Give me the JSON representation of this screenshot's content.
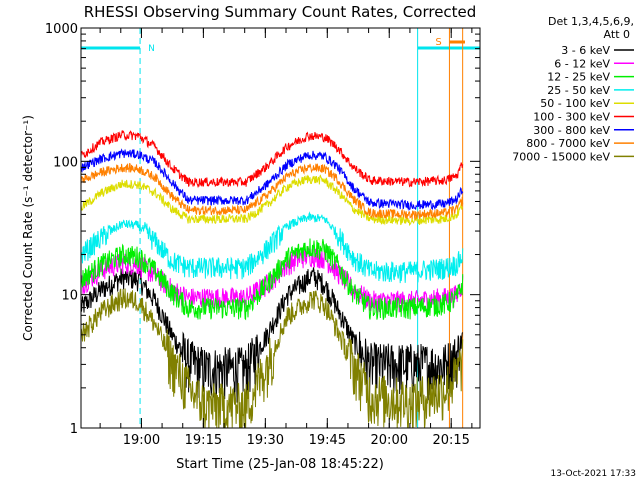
{
  "title": "RHESSI Observing Summary Count Rates, Corrected",
  "xlabel": "Start Time (25-Jan-08 18:45:22)",
  "ylabel": "Corrected Count Rate (s⁻¹ detector⁻¹)",
  "timestamp": "13-Oct-2021 17:33",
  "detector_line1": "Det 1,3,4,5,6,9,",
  "detector_line2": "Att 0",
  "flags": {
    "night_label": "N",
    "saa_label": "S"
  },
  "colors": {
    "night": "#00e5ee",
    "saa": "#ff8000"
  },
  "chart_data": {
    "type": "line",
    "x_axis": {
      "start": "18:45:22",
      "end": "20:22:00",
      "range_minutes": [
        0,
        96.6
      ],
      "ticks": [
        "19:00",
        "19:15",
        "19:30",
        "19:45",
        "20:00",
        "20:15"
      ],
      "tick_minutes": [
        14.63,
        29.63,
        44.63,
        59.63,
        74.63,
        89.63
      ]
    },
    "y_axis": {
      "scale": "log",
      "ylim": [
        1,
        1000
      ],
      "ticks": [
        "1",
        "10",
        "100",
        "1000"
      ],
      "tick_values": [
        1,
        10,
        100,
        1000
      ]
    },
    "night_intervals": [
      {
        "start_min": 0.0,
        "end_min": 14.3,
        "label": "N"
      },
      {
        "start_min": 81.5,
        "end_min": 96.6,
        "label": ""
      }
    ],
    "saa_intervals": [
      {
        "start_min": 89.2,
        "end_min": 92.4,
        "label": "S"
      }
    ],
    "series": [
      {
        "name": "3 - 6 keV",
        "color": "#000000",
        "points": [
          [
            0,
            8
          ],
          [
            5,
            11
          ],
          [
            10,
            13.5
          ],
          [
            14,
            13
          ],
          [
            18,
            9
          ],
          [
            22,
            5
          ],
          [
            26,
            3.2
          ],
          [
            30,
            2.8
          ],
          [
            40,
            2.8
          ],
          [
            45,
            5
          ],
          [
            50,
            10
          ],
          [
            56,
            14
          ],
          [
            59,
            12
          ],
          [
            62,
            8
          ],
          [
            66,
            4.5
          ],
          [
            70,
            3
          ],
          [
            81,
            3
          ],
          [
            88,
            3
          ],
          [
            91,
            3.5
          ],
          [
            92.5,
            5
          ]
        ]
      },
      {
        "name": "6 - 12 keV",
        "color": "#ff00ff",
        "points": [
          [
            0,
            12
          ],
          [
            5,
            15.5
          ],
          [
            10,
            17.5
          ],
          [
            14,
            17
          ],
          [
            18,
            14
          ],
          [
            22,
            11
          ],
          [
            26,
            9.5
          ],
          [
            40,
            9.5
          ],
          [
            45,
            12
          ],
          [
            50,
            17
          ],
          [
            55,
            20
          ],
          [
            59,
            19
          ],
          [
            62,
            15
          ],
          [
            66,
            11
          ],
          [
            70,
            9
          ],
          [
            80,
            9
          ],
          [
            88,
            9.5
          ],
          [
            91,
            10
          ],
          [
            92.5,
            12.5
          ]
        ]
      },
      {
        "name": "12 - 25 keV",
        "color": "#00ee00",
        "points": [
          [
            0,
            13
          ],
          [
            5,
            17
          ],
          [
            10,
            20
          ],
          [
            14,
            19.5
          ],
          [
            18,
            15
          ],
          [
            22,
            10.5
          ],
          [
            26,
            8
          ],
          [
            40,
            8
          ],
          [
            45,
            12
          ],
          [
            50,
            19
          ],
          [
            55,
            23
          ],
          [
            59,
            22
          ],
          [
            62,
            17
          ],
          [
            66,
            10.5
          ],
          [
            70,
            8
          ],
          [
            80,
            8
          ],
          [
            88,
            8.5
          ],
          [
            91,
            9.5
          ],
          [
            92.5,
            12.5
          ]
        ]
      },
      {
        "name": "25 - 50 keV",
        "color": "#00eeee",
        "points": [
          [
            0,
            20
          ],
          [
            5,
            27
          ],
          [
            10,
            34
          ],
          [
            14,
            33
          ],
          [
            18,
            25
          ],
          [
            22,
            18
          ],
          [
            26,
            16
          ],
          [
            40,
            16
          ],
          [
            45,
            22
          ],
          [
            50,
            33
          ],
          [
            55,
            38
          ],
          [
            59,
            37
          ],
          [
            62,
            29
          ],
          [
            66,
            19
          ],
          [
            70,
            15
          ],
          [
            80,
            15
          ],
          [
            88,
            16
          ],
          [
            91,
            17
          ],
          [
            92.5,
            20
          ]
        ]
      },
      {
        "name": "50 - 100 keV",
        "color": "#dddd00",
        "points": [
          [
            0,
            45
          ],
          [
            5,
            58
          ],
          [
            10,
            68
          ],
          [
            14,
            67
          ],
          [
            18,
            58
          ],
          [
            22,
            44
          ],
          [
            26,
            37
          ],
          [
            40,
            37
          ],
          [
            45,
            47
          ],
          [
            50,
            65
          ],
          [
            55,
            74
          ],
          [
            59,
            72
          ],
          [
            62,
            60
          ],
          [
            66,
            44
          ],
          [
            70,
            37
          ],
          [
            80,
            36
          ],
          [
            88,
            37
          ],
          [
            91,
            40
          ],
          [
            92.5,
            48
          ]
        ]
      },
      {
        "name": "100 - 300 keV",
        "color": "#ff0000",
        "points": [
          [
            0,
            110
          ],
          [
            5,
            140
          ],
          [
            10,
            158
          ],
          [
            14,
            155
          ],
          [
            18,
            128
          ],
          [
            22,
            90
          ],
          [
            26,
            70
          ],
          [
            40,
            70
          ],
          [
            45,
            92
          ],
          [
            50,
            130
          ],
          [
            55,
            156
          ],
          [
            59,
            152
          ],
          [
            62,
            128
          ],
          [
            66,
            90
          ],
          [
            70,
            72
          ],
          [
            80,
            70
          ],
          [
            88,
            72
          ],
          [
            91,
            78
          ],
          [
            92.5,
            100
          ]
        ]
      },
      {
        "name": "300 - 800 keV",
        "color": "#0000ff",
        "points": [
          [
            0,
            90
          ],
          [
            5,
            105
          ],
          [
            10,
            115
          ],
          [
            14,
            113
          ],
          [
            18,
            98
          ],
          [
            22,
            70
          ],
          [
            26,
            51
          ],
          [
            40,
            51
          ],
          [
            45,
            67
          ],
          [
            50,
            95
          ],
          [
            55,
            112
          ],
          [
            59,
            109
          ],
          [
            62,
            92
          ],
          [
            66,
            63
          ],
          [
            70,
            49
          ],
          [
            80,
            47
          ],
          [
            88,
            48
          ],
          [
            91,
            52
          ],
          [
            92.5,
            63
          ]
        ]
      },
      {
        "name": "800 - 7000 keV",
        "color": "#ff8000",
        "points": [
          [
            0,
            72
          ],
          [
            5,
            83
          ],
          [
            10,
            90
          ],
          [
            14,
            88
          ],
          [
            18,
            76
          ],
          [
            22,
            55
          ],
          [
            26,
            43
          ],
          [
            40,
            43
          ],
          [
            45,
            56
          ],
          [
            50,
            78
          ],
          [
            55,
            90
          ],
          [
            59,
            88
          ],
          [
            62,
            74
          ],
          [
            66,
            52
          ],
          [
            70,
            41
          ],
          [
            80,
            40
          ],
          [
            88,
            41
          ],
          [
            91,
            44
          ],
          [
            92.5,
            52
          ]
        ]
      },
      {
        "name": "7000 - 15000 keV",
        "color": "#808000",
        "points": [
          [
            0,
            5
          ],
          [
            5,
            7.5
          ],
          [
            10,
            9.5
          ],
          [
            14,
            9
          ],
          [
            18,
            6
          ],
          [
            22,
            3.2
          ],
          [
            26,
            2
          ],
          [
            30,
            1.5
          ],
          [
            40,
            1.5
          ],
          [
            45,
            3
          ],
          [
            50,
            7
          ],
          [
            56,
            9.5
          ],
          [
            59,
            8.5
          ],
          [
            62,
            5.5
          ],
          [
            66,
            3
          ],
          [
            70,
            1.8
          ],
          [
            80,
            1.6
          ],
          [
            88,
            2
          ],
          [
            91,
            2.5
          ],
          [
            92.5,
            3.5
          ]
        ]
      }
    ]
  }
}
